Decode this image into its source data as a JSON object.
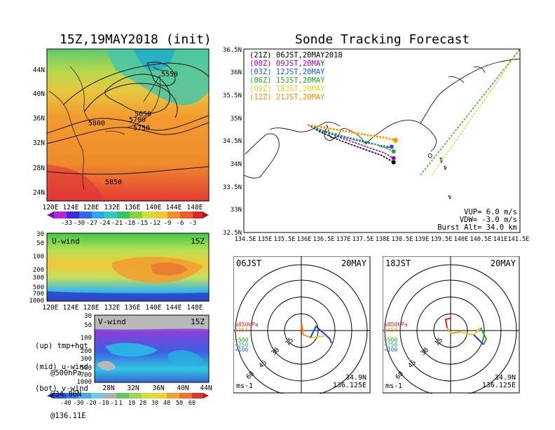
{
  "colors": {
    "land_fill": "#ffffff",
    "series_21Z": "#000000",
    "series_00Z": "#9900cc",
    "series_03Z": "#1e50ff",
    "series_06Z": "#22aa22",
    "series_09Z": "#e6d020",
    "series_12Z": "#ff8800"
  },
  "left_title": "15Z,19MAY2018 (init)",
  "right_title": "Sonde Tracking Forecast",
  "map500": {
    "label": "temp(C)+hgt(m)@500hPa",
    "contour_labels": [
      "5550",
      "5650",
      "5700",
      "5750",
      "5800",
      "5850"
    ],
    "lat_ticks": [
      "44N",
      "40N",
      "36N",
      "32N",
      "28N",
      "24N"
    ],
    "lon_ticks": [
      "120E",
      "124E",
      "128E",
      "132E",
      "136E",
      "140E",
      "144E",
      "148E"
    ],
    "colorbar": [
      "-33",
      "-30",
      "-27",
      "-24",
      "-21",
      "-18",
      "-15",
      "-12",
      "-9",
      "-6",
      "-3"
    ]
  },
  "uwind": {
    "label": "U-wind",
    "time": "15Z",
    "p_ticks": [
      "30",
      "50",
      "100",
      "200",
      "300",
      "500",
      "700",
      "1000"
    ],
    "lon_ticks": [
      "120E",
      "124E",
      "128E",
      "132E",
      "136E",
      "140E",
      "144E",
      "148E"
    ]
  },
  "vwind": {
    "label": "V-wind",
    "time": "15Z",
    "p_ticks": [
      "30",
      "50",
      "100",
      "200",
      "300",
      "500",
      "700",
      "1000"
    ],
    "lat_ticks": [
      "28N",
      "32N",
      "36N",
      "40N",
      "44N"
    ],
    "colorbar": [
      "-40",
      "-30",
      "-20",
      "-10",
      "-1",
      "1",
      "10",
      "20",
      "30",
      "40",
      "50",
      "60"
    ]
  },
  "notes": {
    "up1": "(up) tmp+hgt",
    "up2": "@500hPa",
    "mid1": "(mid) u-wind",
    "mid2": "@34.86N",
    "bot1": "(bot) v-wind",
    "bot2": "@136.11E"
  },
  "track": {
    "legend": [
      "(21Z) 06JST,20MAY2018",
      "(00Z) 09JST,20MAY",
      "(03Z) 12JST,20MAY",
      "(06Z) 15JST,20MAY",
      "(09Z) 18JST,20MAY",
      "(12Z) 21JST,20MAY"
    ],
    "lat_ticks": [
      "36.5N",
      "36N",
      "35.5N",
      "35N",
      "34.5N",
      "34N",
      "33.5N",
      "33N",
      "32.5N"
    ],
    "lon_ticks": [
      "134.5E",
      "135E",
      "135.5E",
      "136E",
      "136.5E",
      "137E",
      "137.5E",
      "138E",
      "138.5E",
      "139E",
      "139.5E",
      "140E",
      "140.5E",
      "141E",
      "141.5E"
    ],
    "info1": "VUP=  6.0 m/s",
    "info2": "VDW= -3.0 m/s",
    "info3": "Burst Alt= 34.0 km"
  },
  "hodo_left": {
    "time": "06JST",
    "date": "20MAY",
    "ring_labels": [
      "15",
      "30",
      "45",
      "60"
    ],
    "levels": [
      "≥850hPa",
      "<850",
      "<500",
      "<250",
      "<100"
    ],
    "lat": "34.9N",
    "lon": "136.125E",
    "unit": "ms-1"
  },
  "hodo_right": {
    "time": "18JST",
    "date": "20MAY",
    "ring_labels": [
      "15",
      "30",
      "45",
      "60"
    ],
    "levels": [
      "≥850hPa",
      "<850",
      "<500",
      "<250",
      "<100"
    ],
    "lat": "34.9N",
    "lon": "136.125E",
    "unit": "ms-1"
  },
  "chart_data": [
    {
      "type": "heatmap",
      "title": "15Z,19MAY2018 (init)",
      "annotation": "temp(C)+hgt(m)@500hPa",
      "x_ticks": [
        "120E",
        "124E",
        "128E",
        "132E",
        "136E",
        "140E",
        "144E",
        "148E"
      ],
      "y_ticks": [
        "24N",
        "28N",
        "32N",
        "36N",
        "40N",
        "44N"
      ],
      "colorbar_ticks": [
        -33,
        -30,
        -27,
        -24,
        -21,
        -18,
        -15,
        -12,
        -9,
        -6,
        -3
      ],
      "contours": [
        5550,
        5650,
        5700,
        5750,
        5800,
        5850
      ]
    },
    {
      "type": "heatmap",
      "title": "U-wind",
      "x_ticks": [
        "120E",
        "124E",
        "128E",
        "132E",
        "136E",
        "140E",
        "144E",
        "148E"
      ],
      "y_ticks": [
        30,
        50,
        100,
        200,
        300,
        500,
        700,
        1000
      ]
    },
    {
      "type": "heatmap",
      "title": "V-wind",
      "x_ticks": [
        "28N",
        "32N",
        "36N",
        "40N",
        "44N"
      ],
      "y_ticks": [
        30,
        50,
        100,
        200,
        300,
        500,
        700,
        1000
      ],
      "colorbar_ticks": [
        -40,
        -30,
        -20,
        -10,
        -1,
        1,
        10,
        20,
        30,
        40,
        50,
        60
      ]
    },
    {
      "type": "line",
      "title": "Sonde Tracking Forecast",
      "xlim": [
        134.5,
        141.5
      ],
      "ylim": [
        32.5,
        36.5
      ],
      "series": [
        {
          "name": "(21Z) 06JST,20MAY2018",
          "x": [
            136.1,
            136.4,
            136.8,
            137.2,
            137.6,
            138.0,
            138.3
          ],
          "y": [
            34.85,
            34.7,
            34.55,
            34.42,
            34.3,
            34.18,
            34.03
          ]
        },
        {
          "name": "(00Z) 09JST,20MAY",
          "x": [
            136.1,
            136.5,
            136.9,
            137.3,
            137.7,
            138.05,
            138.3
          ],
          "y": [
            34.85,
            34.72,
            34.58,
            34.46,
            34.34,
            34.24,
            34.12
          ]
        },
        {
          "name": "(03Z) 12JST,20MAY",
          "x": [
            136.1,
            136.4,
            136.8,
            137.2,
            137.6,
            137.95,
            138.25
          ],
          "y": [
            34.85,
            34.72,
            34.62,
            34.54,
            34.46,
            34.4,
            34.37
          ]
        },
        {
          "name": "(06Z) 15JST,20MAY",
          "x": [
            136.1,
            136.4,
            136.8,
            137.2,
            137.7,
            138.05,
            138.3
          ],
          "y": [
            34.85,
            34.74,
            34.65,
            34.56,
            34.46,
            34.36,
            34.27
          ]
        },
        {
          "name": "(09Z) 18JST,20MAY",
          "x": [
            136.1,
            136.5,
            136.9,
            137.3,
            137.7,
            138.1,
            138.35
          ],
          "y": [
            34.85,
            34.78,
            34.72,
            34.66,
            34.6,
            34.54,
            34.49
          ]
        },
        {
          "name": "(12Z) 21JST,20MAY",
          "x": [
            136.1,
            136.5,
            136.9,
            137.3,
            137.7,
            138.1,
            138.35
          ],
          "y": [
            34.85,
            34.8,
            34.74,
            34.68,
            34.62,
            34.57,
            34.52
          ]
        }
      ]
    }
  ]
}
